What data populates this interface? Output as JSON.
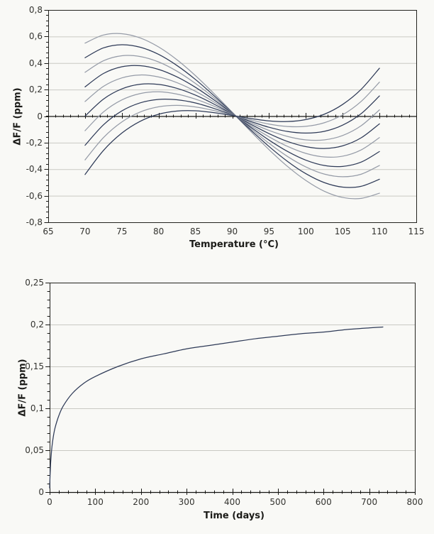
{
  "page": {
    "background": "#f9f9f6"
  },
  "style": {
    "grid_color": "#c9c9c3",
    "frame_color": "#23231f",
    "axis_color": "#171714",
    "tick_label_color": "#33332f",
    "title_color": "#1b1b18",
    "series_color_dark": "#2e3a57",
    "series_color_light": "#959ba7"
  },
  "chart_data": [
    {
      "id": "frequency-vs-temperature",
      "type": "line",
      "title": "",
      "xlabel": "Temperature (°C)",
      "ylabel": "ΔF/F (ppm)",
      "xlim": [
        65,
        115
      ],
      "ylim": [
        -0.8,
        0.8
      ],
      "grid": "horizontal-major",
      "legend": "none",
      "x_major_ticks": [
        65,
        70,
        75,
        80,
        85,
        90,
        95,
        100,
        105,
        110,
        115
      ],
      "x_tick_labels": [
        "65",
        "70",
        "75",
        "80",
        "85",
        "90",
        "95",
        "100",
        "105",
        "110",
        "115"
      ],
      "x_minor_step": 1,
      "y_major_ticks": [
        0.8,
        0.6,
        0.4,
        0.2,
        0,
        -0.2,
        -0.4,
        -0.6,
        -0.8
      ],
      "y_tick_labels": [
        "0,8",
        "0,6",
        "0,4",
        "0,2",
        "0",
        "-0,2",
        "-0,4",
        "-0,6",
        "-0,8"
      ],
      "y_minor_step": 0.04,
      "x": [
        70,
        72.5,
        75,
        77.5,
        80,
        82.5,
        85,
        87.5,
        90,
        92.5,
        95,
        97.5,
        100,
        102.5,
        105,
        107.5,
        110
      ],
      "series": [
        {
          "name": "curve-1",
          "color_role": "light",
          "values": [
            0.55,
            0.611,
            0.621,
            0.589,
            0.521,
            0.424,
            0.305,
            0.171,
            0.029,
            -0.115,
            -0.253,
            -0.379,
            -0.485,
            -0.566,
            -0.613,
            -0.62,
            -0.581
          ]
        },
        {
          "name": "curve-2",
          "color_role": "dark",
          "values": [
            0.44,
            0.514,
            0.538,
            0.519,
            0.465,
            0.381,
            0.276,
            0.155,
            0.026,
            -0.104,
            -0.229,
            -0.341,
            -0.434,
            -0.501,
            -0.535,
            -0.529,
            -0.476
          ]
        },
        {
          "name": "curve-3",
          "color_role": "light",
          "values": [
            0.33,
            0.417,
            0.455,
            0.449,
            0.408,
            0.338,
            0.246,
            0.139,
            0.024,
            -0.093,
            -0.205,
            -0.304,
            -0.383,
            -0.437,
            -0.457,
            -0.438,
            -0.372
          ]
        },
        {
          "name": "curve-4",
          "color_role": "dark",
          "values": [
            0.22,
            0.321,
            0.372,
            0.38,
            0.352,
            0.295,
            0.217,
            0.123,
            0.021,
            -0.083,
            -0.181,
            -0.266,
            -0.332,
            -0.372,
            -0.379,
            -0.347,
            -0.267
          ]
        },
        {
          "name": "curve-5",
          "color_role": "light",
          "values": [
            0.11,
            0.224,
            0.288,
            0.31,
            0.295,
            0.252,
            0.187,
            0.107,
            0.018,
            -0.072,
            -0.156,
            -0.228,
            -0.281,
            -0.308,
            -0.302,
            -0.255,
            -0.162
          ]
        },
        {
          "name": "curve-6",
          "color_role": "dark",
          "values": [
            0.0,
            0.128,
            0.205,
            0.24,
            0.239,
            0.209,
            0.158,
            0.091,
            0.015,
            -0.061,
            -0.132,
            -0.191,
            -0.23,
            -0.244,
            -0.224,
            -0.164,
            -0.058
          ]
        },
        {
          "name": "curve-7",
          "color_role": "light",
          "values": [
            -0.11,
            0.031,
            0.122,
            0.17,
            0.183,
            0.166,
            0.128,
            0.075,
            0.013,
            -0.05,
            -0.108,
            -0.153,
            -0.179,
            -0.179,
            -0.146,
            -0.073,
            0.047
          ]
        },
        {
          "name": "curve-8",
          "color_role": "dark",
          "values": [
            -0.22,
            -0.066,
            0.039,
            0.1,
            0.126,
            0.123,
            0.099,
            0.058,
            0.01,
            -0.04,
            -0.084,
            -0.116,
            -0.128,
            -0.115,
            -0.068,
            0.018,
            0.152
          ]
        },
        {
          "name": "curve-9",
          "color_role": "light",
          "values": [
            -0.33,
            -0.162,
            -0.044,
            0.031,
            0.07,
            0.081,
            0.069,
            0.042,
            0.007,
            -0.029,
            -0.06,
            -0.078,
            -0.077,
            -0.05,
            0.01,
            0.11,
            0.256
          ]
        },
        {
          "name": "curve-10",
          "color_role": "dark",
          "values": [
            -0.44,
            -0.259,
            -0.128,
            -0.039,
            0.014,
            0.038,
            0.04,
            0.026,
            0.005,
            -0.018,
            -0.036,
            -0.041,
            -0.026,
            0.014,
            0.088,
            0.201,
            0.361
          ]
        }
      ]
    },
    {
      "id": "aging-vs-time",
      "type": "line",
      "title": "",
      "xlabel": "Time (days)",
      "ylabel": "ΔF/F (ppm)",
      "xlim": [
        0,
        800
      ],
      "ylim": [
        0,
        0.25
      ],
      "grid": "horizontal-major",
      "legend": "none",
      "x_major_ticks": [
        0,
        100,
        200,
        300,
        400,
        500,
        600,
        700,
        800
      ],
      "x_tick_labels": [
        "0",
        "100",
        "200",
        "300",
        "400",
        "500",
        "600",
        "700",
        "800"
      ],
      "x_minor_step": 20,
      "y_major_ticks": [
        0.25,
        0.2,
        0.15,
        0.1,
        0.05,
        0
      ],
      "y_tick_labels": [
        "0,25",
        "0,2",
        "0,15",
        "0,1",
        "0,05",
        "0"
      ],
      "y_minor_step": 0.01,
      "x": [
        0,
        1,
        2,
        3,
        5,
        8,
        12,
        20,
        30,
        50,
        75,
        100,
        150,
        200,
        250,
        300,
        350,
        400,
        450,
        500,
        550,
        600,
        650,
        700,
        730
      ],
      "series": [
        {
          "name": "aging-curve",
          "color_role": "dark",
          "values": [
            0.005,
            0.021,
            0.033,
            0.041,
            0.054,
            0.066,
            0.077,
            0.091,
            0.103,
            0.118,
            0.13,
            0.138,
            0.15,
            0.159,
            0.165,
            0.171,
            0.175,
            0.179,
            0.183,
            0.186,
            0.189,
            0.191,
            0.194,
            0.196,
            0.197
          ]
        }
      ]
    }
  ]
}
